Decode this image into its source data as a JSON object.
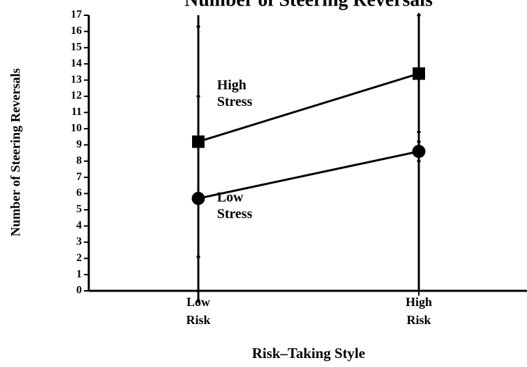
{
  "chart_data": {
    "type": "line",
    "title": "Number of Steering Reversals",
    "x_label": "Risk–Taking Style",
    "y_label": "Number of Steering Reversals",
    "categories": [
      "Low Risk",
      "High Risk"
    ],
    "series": [
      {
        "name": "High Stress",
        "color": "#000000",
        "marker": "square",
        "values": [
          9.2,
          13.4
        ],
        "errors": [
          7.1,
          3.6
        ]
      },
      {
        "name": "Low Stress",
        "color": "#000000",
        "marker": "circle",
        "values": [
          5.7,
          8.6
        ],
        "errors": [
          6.3,
          0.6
        ]
      }
    ],
    "ylim": [
      0,
      17
    ],
    "yticks": [
      0,
      1,
      2,
      3,
      4,
      5,
      6,
      7,
      8,
      9,
      10,
      11,
      12,
      13,
      14,
      15,
      16,
      17
    ],
    "grid": false
  }
}
